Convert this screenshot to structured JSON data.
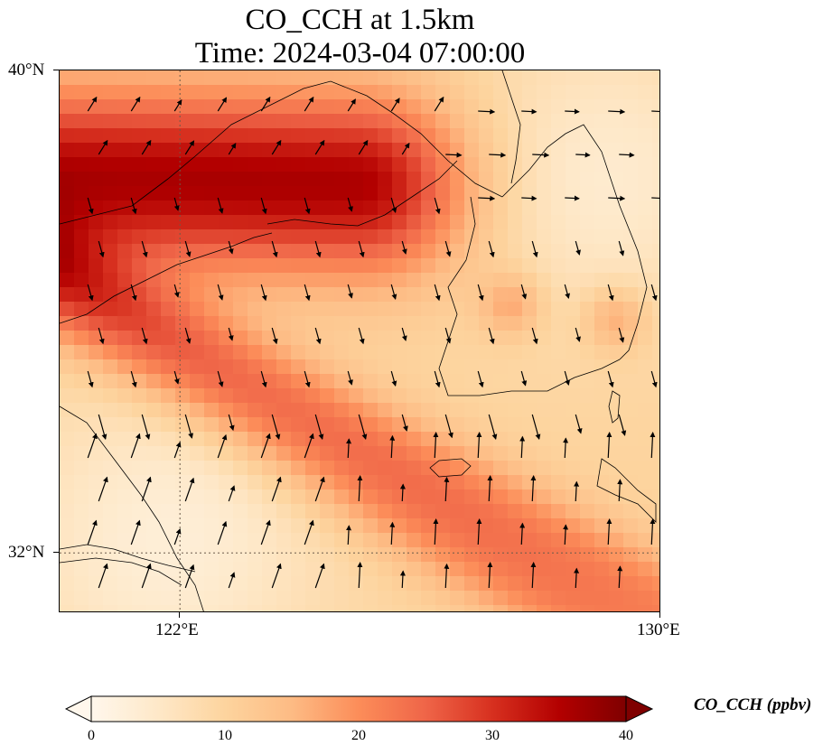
{
  "title_line1": "CO_CCH at 1.5km",
  "title_line2": "Time: 2024-03-04 07:00:00",
  "map": {
    "extent": {
      "lon_min": 120,
      "lon_max": 130,
      "lat_min": 31,
      "lat_max": 40
    },
    "lat_ticks": [
      {
        "value": 40,
        "label": "40°N"
      },
      {
        "value": 32,
        "label": "32°N"
      }
    ],
    "lon_ticks": [
      {
        "value": 122,
        "label": "122°E"
      },
      {
        "value": 130,
        "label": "130°E"
      }
    ],
    "gridlines": {
      "lat": 32,
      "lon": 122,
      "style": "dotted"
    },
    "field": "CO_CCH",
    "level": "1.5km",
    "units": "ppbv",
    "colormap": "OrRd",
    "wind_vectors": true,
    "coastlines": true
  },
  "colorbar": {
    "label": "CO_CCH (ppbv)",
    "min": 0,
    "max": 40,
    "ticks": [
      "0",
      "10",
      "20",
      "30",
      "40"
    ],
    "extend": "both",
    "colors": [
      "#fff7ec",
      "#fee8c8",
      "#fdd49e",
      "#fdbb84",
      "#fc8d59",
      "#ef6548",
      "#d7301f",
      "#b30000",
      "#7f0000"
    ]
  }
}
